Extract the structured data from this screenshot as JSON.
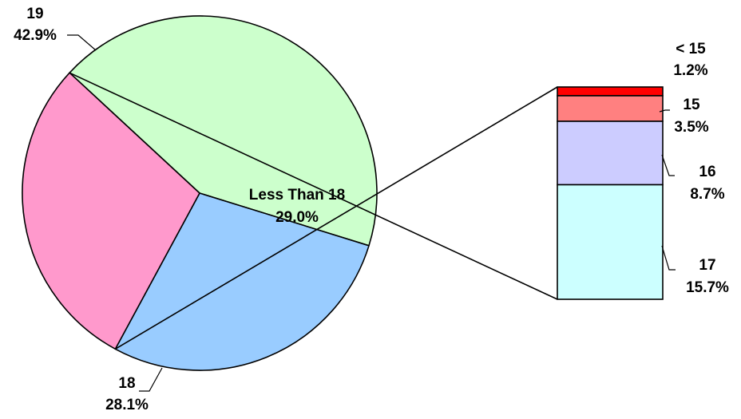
{
  "chart_data": {
    "type": "pie",
    "title": "",
    "slices": [
      {
        "label": "19",
        "percent_label": "42.9%",
        "value": 42.9,
        "color": "#CCFFCC"
      },
      {
        "label": "18",
        "percent_label": "28.1%",
        "value": 28.1,
        "color": "#99CCFF"
      },
      {
        "label": "Less Than 18",
        "percent_label": "29.0%",
        "value": 29.0,
        "color": "#FF99CC"
      }
    ],
    "breakdown": {
      "of": "Less Than 18",
      "type": "stacked-bar",
      "segments": [
        {
          "label": "< 15",
          "percent_label": "1.2%",
          "value": 1.2,
          "color": "#FF0000"
        },
        {
          "label": "15",
          "percent_label": "3.5%",
          "value": 3.5,
          "color": "#FF8080"
        },
        {
          "label": "16",
          "percent_label": "8.7%",
          "value": 8.7,
          "color": "#CCCCFF"
        },
        {
          "label": "17",
          "percent_label": "15.7%",
          "value": 15.7,
          "color": "#CCFFFF"
        }
      ]
    }
  }
}
